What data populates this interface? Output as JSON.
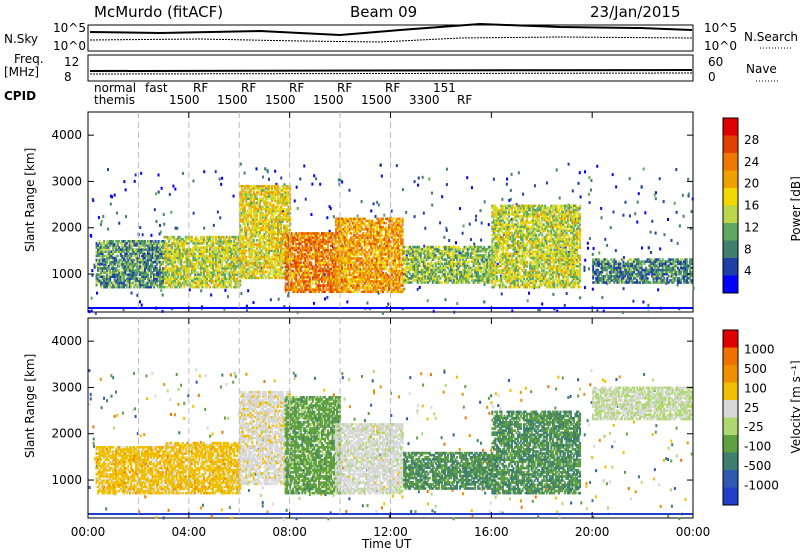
{
  "header": {
    "station": "McMurdo (fitACF)",
    "beam": "Beam 09",
    "date": "23/Jan/2015"
  },
  "top_panels": {
    "nsky_label": "N.Sky",
    "nsky_ticks": [
      "10^5",
      "10^0"
    ],
    "nsearch_label": "N.Search",
    "nsearch_ticks": [
      "10^5",
      "10^0"
    ],
    "freq_label": "Freq.",
    "freq_unit": "[MHz]",
    "freq_ticks": [
      "12",
      "8"
    ],
    "nave_label": "Nave",
    "nave_ticks": [
      "60",
      "0"
    ],
    "cpid_label": "CPID",
    "cpid_text_1": "normal",
    "cpid_text_2": "themis",
    "cpid_modes": [
      "fast",
      "1500",
      "RF",
      "1500",
      "RF",
      "1500",
      "RF",
      "1500",
      "RF",
      "1500",
      "RF",
      "3300",
      "151",
      "RF"
    ]
  },
  "colors": {
    "power_scale": [
      "#0000ff",
      "#1f3fa8",
      "#3f7f6f",
      "#5fa85f",
      "#bcd84a",
      "#f0d800",
      "#f0a000",
      "#f07800",
      "#e04000",
      "#e00000"
    ],
    "velocity_scale": [
      "#1f3fc8",
      "#2f58b0",
      "#3f7f6f",
      "#5fa040",
      "#b0d870",
      "#d8d8d8",
      "#f0c000",
      "#f09000",
      "#f07000",
      "#e00000"
    ],
    "grid_dashed": "#bbbbbb"
  },
  "chart_data": [
    {
      "type": "heatmap",
      "title": "Power",
      "xlabel": "Time UT",
      "ylabel": "Slant Range [km]",
      "x_ticks": [
        "00:00",
        "04:00",
        "08:00",
        "12:00",
        "16:00",
        "20:00",
        "00:00"
      ],
      "y_ticks": [
        "1000",
        "2000",
        "3000",
        "4000"
      ],
      "ylim": [
        180,
        4500
      ],
      "colorbar_label": "Power [dB]",
      "colorbar_ticks": [
        "4",
        "8",
        "12",
        "16",
        "20",
        "24",
        "28"
      ],
      "clim": [
        0,
        30
      ],
      "dashed_times_hours": [
        2,
        4,
        6,
        8,
        10,
        12
      ],
      "regions": [
        {
          "t0": 0.3,
          "t1": 3.0,
          "r0": 700,
          "r1": 1700,
          "value": 9
        },
        {
          "t0": 3.0,
          "t1": 6.0,
          "r0": 700,
          "r1": 1800,
          "value": 14
        },
        {
          "t0": 6.0,
          "t1": 8.0,
          "r0": 900,
          "r1": 2900,
          "value": 16
        },
        {
          "t0": 7.8,
          "t1": 10.0,
          "r0": 600,
          "r1": 1900,
          "value": 22
        },
        {
          "t0": 9.8,
          "t1": 12.5,
          "r0": 600,
          "r1": 2200,
          "value": 20
        },
        {
          "t0": 12.5,
          "t1": 16.0,
          "r0": 800,
          "r1": 1600,
          "value": 12
        },
        {
          "t0": 16.0,
          "t1": 19.5,
          "r0": 700,
          "r1": 2500,
          "value": 14
        },
        {
          "t0": 20.0,
          "t1": 23.9,
          "r0": 800,
          "r1": 1300,
          "value": 8
        }
      ]
    },
    {
      "type": "heatmap",
      "title": "Velocity",
      "xlabel": "Time UT",
      "ylabel": "Slant Range [km]",
      "x_ticks": [
        "00:00",
        "04:00",
        "08:00",
        "12:00",
        "16:00",
        "20:00",
        "00:00"
      ],
      "y_ticks": [
        "1000",
        "2000",
        "3000",
        "4000"
      ],
      "ylim": [
        180,
        4500
      ],
      "colorbar_label": "Velocity [m s⁻¹]",
      "colorbar_ticks": [
        "1000",
        "500",
        "100",
        "25",
        "-25",
        "-100",
        "-500",
        "-1000"
      ],
      "clim": [
        -1000,
        1000
      ],
      "regions": [
        {
          "t0": 0.3,
          "t1": 3.0,
          "r0": 700,
          "r1": 1700,
          "value": 300
        },
        {
          "t0": 3.0,
          "t1": 6.0,
          "r0": 700,
          "r1": 1800,
          "value": 300
        },
        {
          "t0": 6.0,
          "t1": 8.0,
          "r0": 900,
          "r1": 2900,
          "value": 120
        },
        {
          "t0": 7.8,
          "t1": 10.0,
          "r0": 700,
          "r1": 2800,
          "value": -300
        },
        {
          "t0": 9.8,
          "t1": 12.5,
          "r0": 700,
          "r1": 2200,
          "value": 80
        },
        {
          "t0": 12.5,
          "t1": 16.0,
          "r0": 800,
          "r1": 1600,
          "value": -400
        },
        {
          "t0": 16.0,
          "t1": 19.5,
          "r0": 700,
          "r1": 2500,
          "value": -400
        },
        {
          "t0": 20.0,
          "t1": 23.9,
          "r0": 2300,
          "r1": 3000,
          "value": 0
        }
      ]
    }
  ]
}
